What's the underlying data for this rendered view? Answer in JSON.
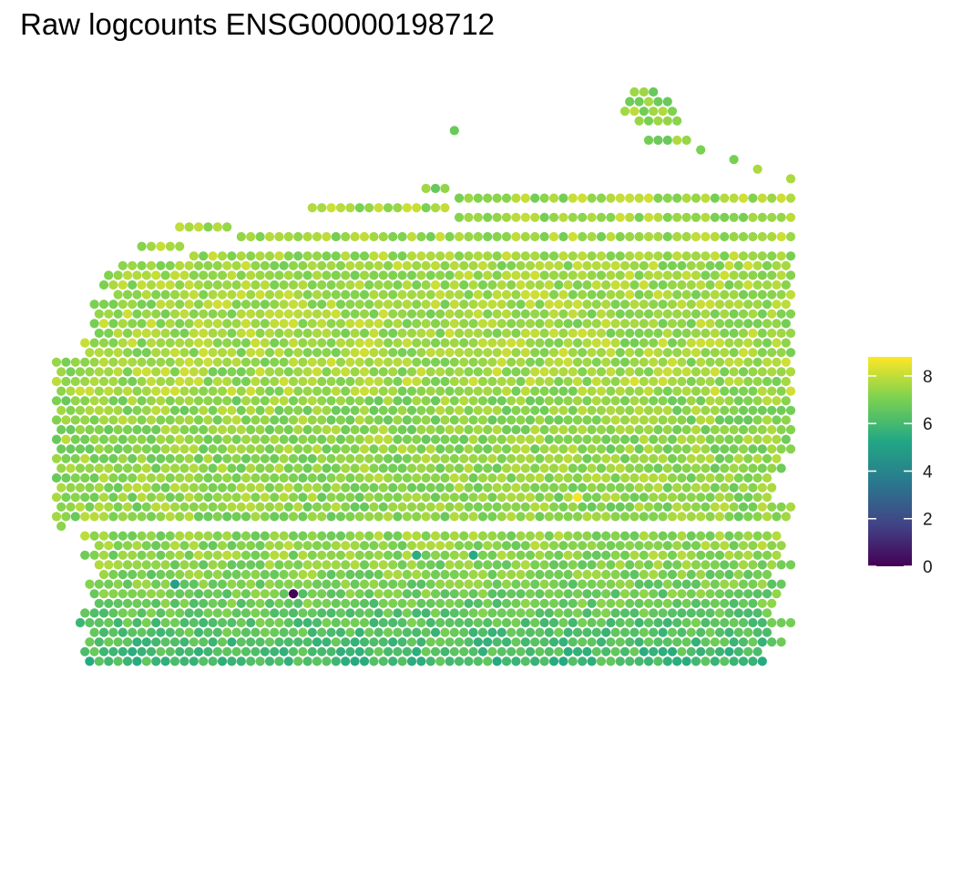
{
  "title": "Raw logcounts ENSG00000198712",
  "chart_data": {
    "type": "scatter",
    "subtype": "spatial-spot-map",
    "title": "Raw logcounts ENSG00000198712",
    "xlabel": "",
    "ylabel": "",
    "grid": false,
    "axes_shown": false,
    "color_scale": {
      "name": "viridis",
      "min": 0,
      "max": 8.8,
      "stops": [
        "#440154",
        "#414487",
        "#2a788e",
        "#22a884",
        "#7ad151",
        "#fde725"
      ]
    },
    "legend": {
      "position": "right",
      "title": "",
      "ticks": [
        0,
        2,
        4,
        6,
        8
      ],
      "tick_labels": [
        "0",
        "2",
        "4",
        "6",
        "8"
      ]
    },
    "spot_grid": {
      "rows": 60,
      "cols": 78,
      "row_ranges": [
        [
          61,
          63
        ],
        [
          60,
          64
        ],
        [
          60,
          65
        ],
        [
          61,
          65
        ],
        [
          42,
          42
        ],
        [
          62,
          66
        ],
        [
          68,
          68
        ],
        [
          71,
          71
        ],
        [
          74,
          74
        ],
        [
          77,
          77
        ],
        [
          39,
          41
        ],
        [
          42,
          77
        ],
        [
          27,
          41
        ],
        [
          42,
          77
        ],
        [
          13,
          18
        ],
        [
          19,
          77
        ],
        [
          9,
          13
        ],
        [
          14,
          77
        ],
        [
          7,
          77
        ],
        [
          5,
          77
        ],
        [
          5,
          77
        ],
        [
          6,
          77
        ],
        [
          4,
          77
        ],
        [
          4,
          77
        ],
        [
          4,
          77
        ],
        [
          4,
          77
        ],
        [
          3,
          77
        ],
        [
          3,
          77
        ],
        [
          0,
          77
        ],
        [
          0,
          77
        ],
        [
          0,
          77
        ],
        [
          0,
          77
        ],
        [
          0,
          77
        ],
        [
          0,
          77
        ],
        [
          0,
          77
        ],
        [
          0,
          77
        ],
        [
          0,
          77
        ],
        [
          0,
          77
        ],
        [
          0,
          76
        ],
        [
          0,
          76
        ],
        [
          0,
          75
        ],
        [
          0,
          75
        ],
        [
          0,
          75
        ],
        [
          0,
          77
        ],
        [
          0,
          77
        ],
        [
          0,
          0
        ],
        [
          3,
          76
        ],
        [
          4,
          76
        ],
        [
          3,
          76
        ],
        [
          4,
          77
        ],
        [
          5,
          75
        ],
        [
          3,
          76
        ],
        [
          4,
          76
        ],
        [
          4,
          75
        ],
        [
          3,
          75
        ],
        [
          2,
          77
        ],
        [
          4,
          75
        ],
        [
          3,
          76
        ],
        [
          3,
          74
        ],
        [
          3,
          74
        ]
      ],
      "default_value": 7.3,
      "hotspots": [
        {
          "row": 42,
          "col": 55,
          "value": 8.7
        },
        {
          "row": 30,
          "col": 61,
          "value": 8.3
        },
        {
          "row": 52,
          "col": 25,
          "value": 0.1
        },
        {
          "row": 51,
          "col": 12,
          "value": 5.0
        },
        {
          "row": 48,
          "col": 38,
          "value": 5.5
        },
        {
          "row": 48,
          "col": 44,
          "value": 5.4
        }
      ]
    }
  }
}
